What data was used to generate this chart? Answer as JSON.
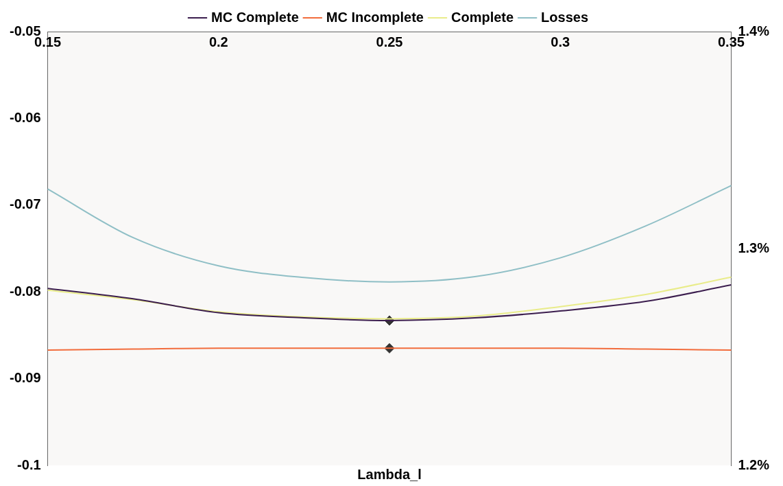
{
  "chart_data": {
    "type": "line",
    "xlabel": "Lambda_l",
    "x": [
      0.15,
      0.175,
      0.2,
      0.225,
      0.25,
      0.275,
      0.3,
      0.325,
      0.35
    ],
    "xlim": [
      0.15,
      0.35
    ],
    "xticks": [
      0.15,
      0.2,
      0.25,
      0.3,
      0.35
    ],
    "ylim": [
      -0.1,
      -0.05
    ],
    "yticks": [
      -0.1,
      -0.09,
      -0.08,
      -0.07,
      -0.06,
      -0.05
    ],
    "y2lim": [
      1.2,
      1.4
    ],
    "y2ticks": [
      {
        "value": 1.2,
        "label": "1.2%"
      },
      {
        "value": 1.3,
        "label": "1.3%"
      },
      {
        "value": 1.4,
        "label": "1.4%"
      }
    ],
    "legend": "top",
    "grid": false,
    "marker": "none",
    "line_style": "solid",
    "series": [
      {
        "name": "MC Complete",
        "color": "#3b1d4e",
        "values": [
          -0.0796,
          -0.0808,
          -0.0824,
          -0.083,
          -0.0833,
          -0.083,
          -0.0822,
          -0.0811,
          -0.0792
        ]
      },
      {
        "name": "MC Incomplete",
        "color": "#f26c3c",
        "values": [
          -0.0867,
          -0.0866,
          -0.0865,
          -0.0865,
          -0.0865,
          -0.0865,
          -0.0865,
          -0.0866,
          -0.0867
        ]
      },
      {
        "name": "Complete",
        "color": "#e9ec8a",
        "values": [
          -0.0798,
          -0.0809,
          -0.0823,
          -0.0829,
          -0.0831,
          -0.0828,
          -0.0817,
          -0.0803,
          -0.0783
        ]
      },
      {
        "name": "Losses",
        "color": "#8fbfc6",
        "axis": "y2",
        "values": [
          1.3274,
          1.305,
          1.292,
          1.2866,
          1.2846,
          1.287,
          1.2957,
          1.3104,
          1.329
        ]
      },
      {
        "type": "scatter",
        "color": "#333333",
        "marker": "diamond",
        "x": [
          0.25,
          0.25
        ],
        "values": [
          -0.0833,
          -0.0865
        ]
      }
    ]
  }
}
